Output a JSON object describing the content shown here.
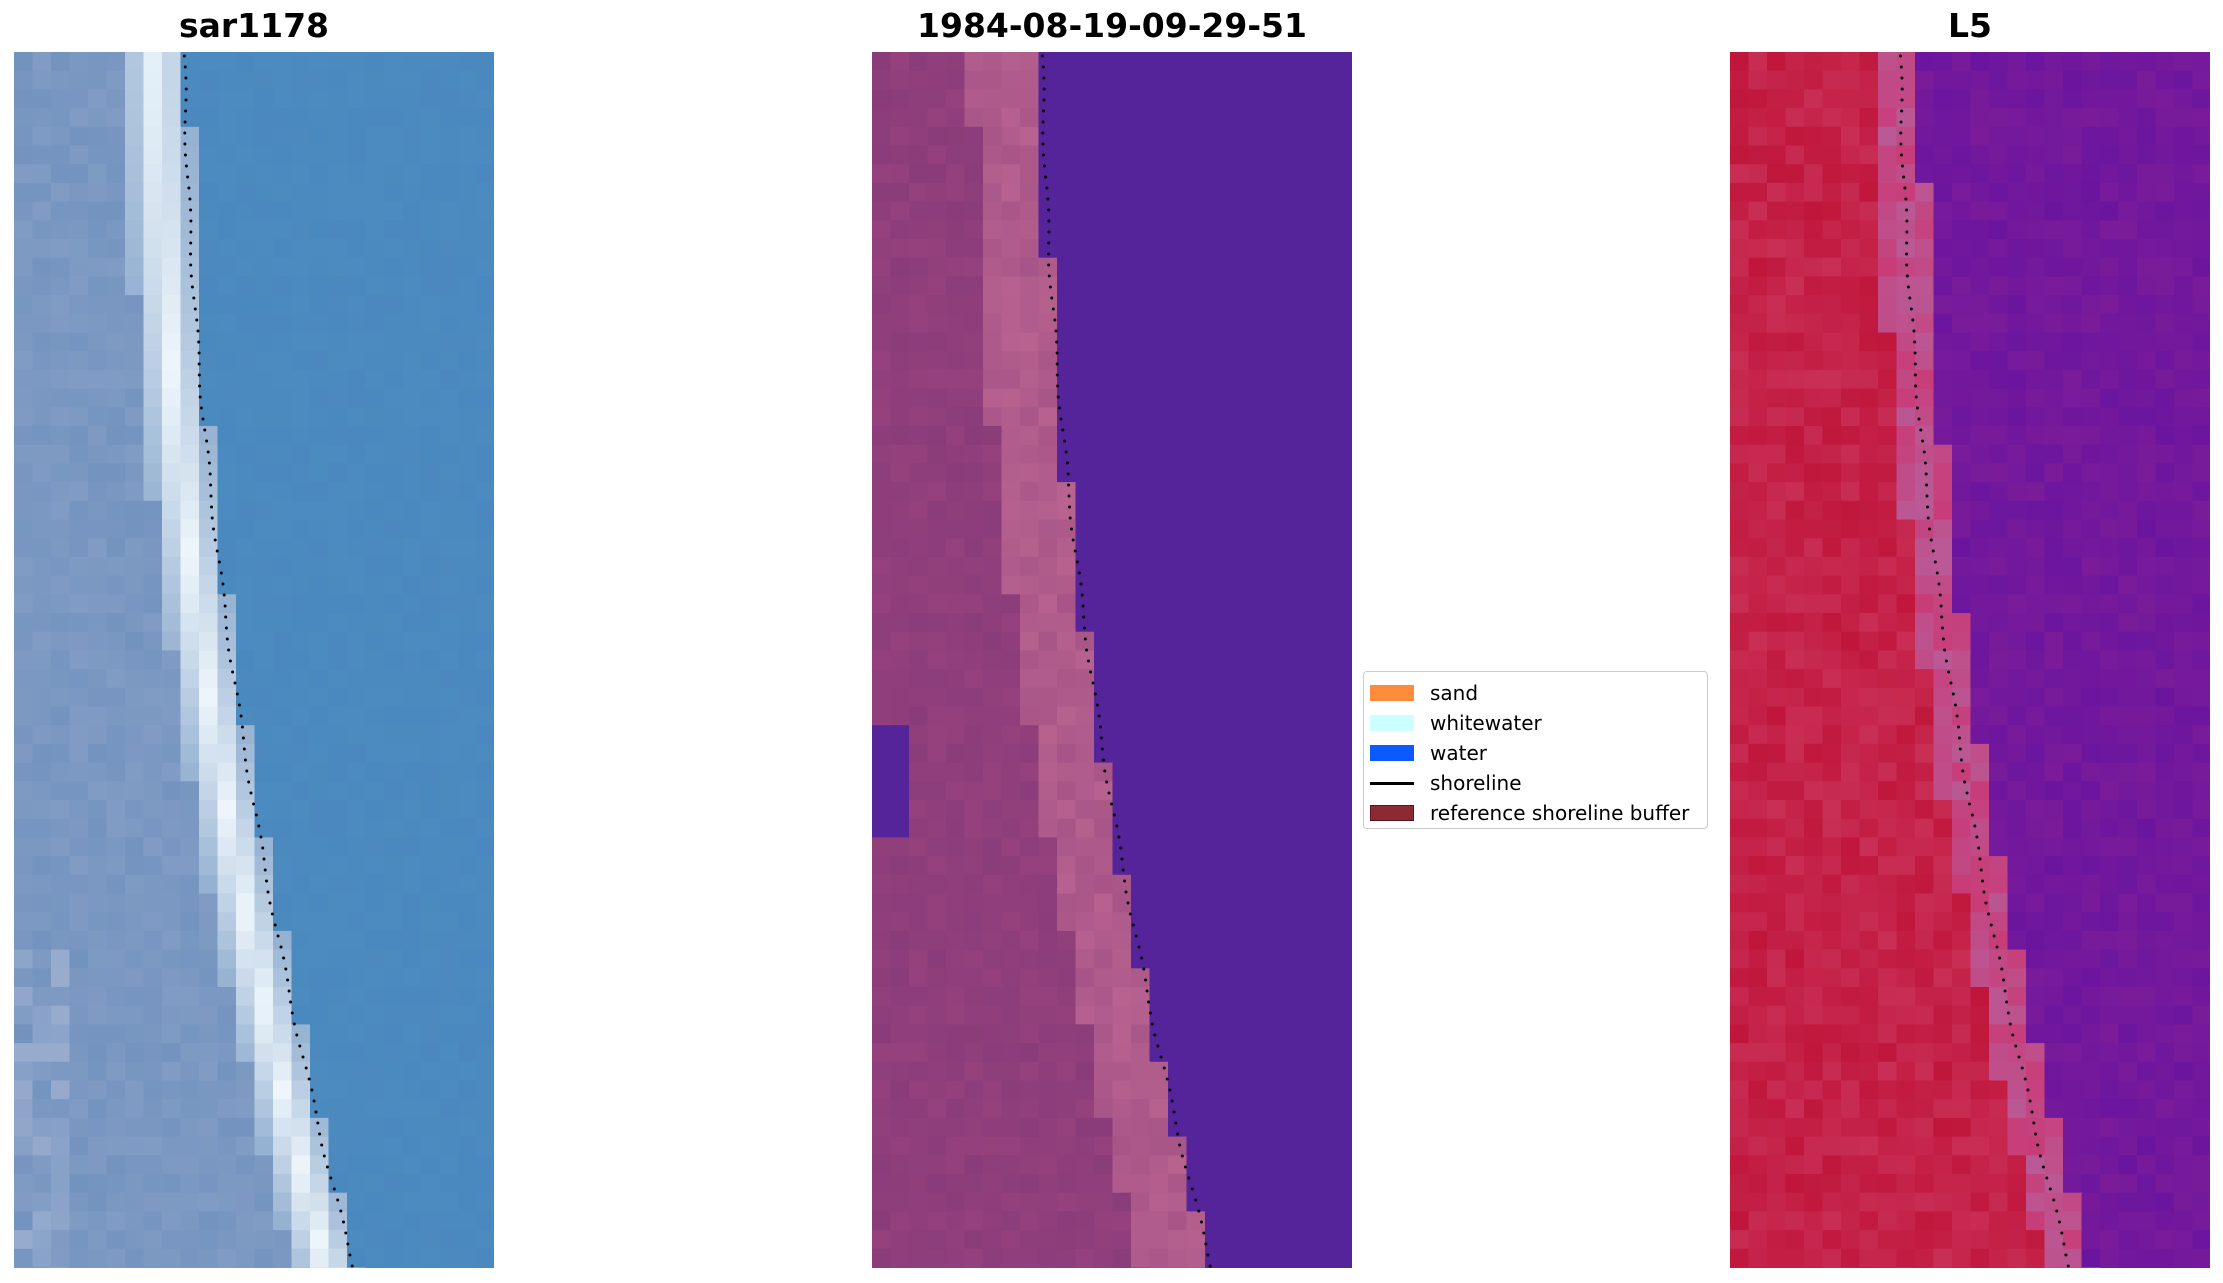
{
  "panels": [
    {
      "title": "sar1178",
      "style": "rgb"
    },
    {
      "title": "1984-08-19-09-29-51",
      "style": "classified"
    },
    {
      "title": "L5",
      "style": "index"
    }
  ],
  "legend": {
    "items": [
      {
        "label": "sand",
        "kind": "patch",
        "color": "#ff8c3c"
      },
      {
        "label": "whitewater",
        "kind": "patch",
        "color": "#ccffff"
      },
      {
        "label": "water",
        "kind": "patch",
        "color": "#0a5aff"
      },
      {
        "label": "shoreline",
        "kind": "line",
        "color": "#000000"
      },
      {
        "label": "reference shoreline buffer",
        "kind": "patch",
        "color": "#8b2a33"
      }
    ]
  },
  "colors": {
    "rgb_water": "#4a88bf",
    "rgb_land": "#6f90bd",
    "rgb_surf": "#eef6fb",
    "class_water": "#55249a",
    "class_buffer": "#b7628f",
    "class_land": "#8a3c7a",
    "index_land": "#c0163c",
    "index_water": "#7a1c9a",
    "shoreline": "#000000"
  }
}
